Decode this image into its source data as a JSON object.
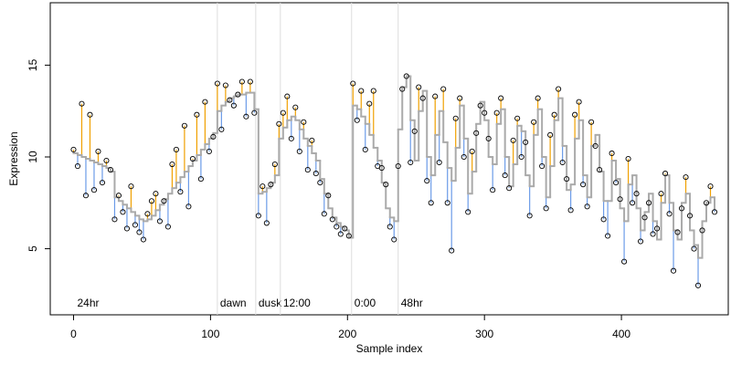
{
  "chart_data": {
    "type": "scatter",
    "xlabel": "Sample index",
    "ylabel": "Expression",
    "xlim": [
      -17,
      478
    ],
    "ylim": [
      1.4,
      18.4
    ],
    "xticks": [
      0,
      100,
      200,
      300,
      400
    ],
    "yticks": [
      5,
      10,
      15
    ],
    "events": [
      {
        "x": 105,
        "label": "dawn"
      },
      {
        "x": 133,
        "label": "dusk"
      },
      {
        "x": 151,
        "label": "12:00"
      },
      {
        "x": 203,
        "label": "0:00"
      },
      {
        "x": 237,
        "label": "48hr"
      }
    ],
    "start_label": "24hr",
    "colors": {
      "above": "#f0a000",
      "below": "#6b9be8",
      "fit": "#aaaaaa",
      "point": "#000000",
      "event": "#dddddd"
    },
    "x": [
      0,
      3,
      6,
      9,
      12,
      15,
      18,
      21,
      24,
      27,
      30,
      33,
      36,
      39,
      42,
      45,
      48,
      51,
      54,
      57,
      60,
      63,
      66,
      69,
      72,
      75,
      78,
      81,
      84,
      87,
      90,
      93,
      96,
      99,
      102,
      105,
      108,
      111,
      114,
      117,
      120,
      123,
      126,
      129,
      132,
      135,
      138,
      141,
      144,
      147,
      150,
      153,
      156,
      159,
      162,
      165,
      168,
      171,
      174,
      177,
      180,
      183,
      186,
      189,
      192,
      195,
      198,
      201,
      204,
      207,
      210,
      213,
      216,
      219,
      222,
      225,
      228,
      231,
      234,
      237,
      240,
      243,
      246,
      249,
      252,
      255,
      258,
      261,
      264,
      267,
      270,
      273,
      276,
      279,
      282,
      285,
      288,
      291,
      294,
      297,
      300,
      303,
      306,
      309,
      312,
      315,
      318,
      321,
      324,
      327,
      330,
      333,
      336,
      339,
      342,
      345,
      348,
      351,
      354,
      357,
      360,
      363,
      366,
      369,
      372,
      375,
      378,
      381,
      384,
      387,
      390,
      393,
      396,
      399,
      402,
      405,
      408,
      411,
      414,
      417,
      420,
      423,
      426,
      429,
      432,
      435,
      438,
      441,
      444,
      447,
      450,
      453,
      456,
      459,
      462,
      465,
      468
    ],
    "y": [
      10.4,
      9.5,
      12.9,
      7.9,
      12.3,
      8.2,
      10.3,
      8.6,
      9.8,
      9.3,
      6.6,
      7.9,
      7.0,
      6.1,
      8.4,
      6.3,
      5.9,
      5.5,
      6.9,
      7.6,
      8.0,
      6.5,
      7.6,
      6.2,
      9.6,
      10.4,
      8.1,
      11.7,
      7.3,
      9.9,
      12.3,
      8.8,
      13.0,
      10.3,
      11.1,
      14.0,
      11.5,
      13.9,
      13.1,
      12.8,
      13.4,
      14.1,
      12.2,
      14.1,
      12.4,
      6.8,
      8.4,
      6.4,
      8.5,
      9.6,
      11.8,
      12.4,
      13.3,
      11.0,
      12.7,
      10.3,
      11.9,
      9.3,
      10.9,
      9.1,
      8.6,
      6.9,
      7.9,
      6.6,
      6.2,
      5.8,
      6.1,
      5.7,
      14.0,
      12.0,
      13.6,
      10.4,
      12.9,
      13.6,
      9.5,
      9.4,
      8.5,
      6.2,
      5.5,
      9.5,
      13.7,
      14.4,
      9.7,
      11.4,
      13.8,
      13.2,
      8.7,
      7.5,
      13.3,
      9.7,
      13.7,
      7.5,
      4.9,
      12.1,
      13.2,
      10.0,
      7.0,
      10.3,
      11.3,
      12.8,
      12.4,
      11.0,
      8.2,
      12.4,
      13.2,
      9.0,
      8.3,
      10.9,
      12.1,
      10.0,
      10.8,
      6.8,
      11.9,
      13.2,
      9.5,
      7.2,
      11.2,
      12.3,
      13.7,
      9.7,
      8.8,
      7.1,
      12.3,
      13.0,
      8.5,
      7.3,
      11.9,
      10.6,
      9.3,
      6.6,
      5.7,
      10.2,
      8.6,
      7.7,
      4.3,
      9.9,
      7.5,
      8.0,
      5.4,
      6.7,
      7.5,
      5.8,
      6.1,
      8.0,
      9.1,
      6.9,
      3.8,
      5.9,
      7.2,
      8.9,
      6.8,
      5.0,
      3.0,
      6.0,
      7.5,
      8.4,
      7.0
    ],
    "fit": [
      10.2,
      10.1,
      10,
      9.9,
      9.8,
      9.7,
      9.6,
      9.5,
      9.4,
      9.2,
      7.8,
      7.6,
      7.4,
      7.2,
      7.0,
      6.8,
      6.6,
      6.5,
      6.6,
      6.8,
      7.1,
      7.4,
      7.7,
      8.0,
      8.3,
      8.6,
      8.9,
      9.2,
      9.5,
      9.8,
      10.1,
      10.4,
      10.7,
      11.0,
      11.3,
      12.5,
      12.8,
      13.0,
      13.2,
      13.3,
      13.4,
      13.4,
      13.5,
      13.5,
      12.6,
      8.0,
      8.1,
      8.3,
      8.6,
      9.0,
      11.0,
      11.6,
      12.0,
      12.2,
      12.0,
      11.5,
      11.0,
      10.6,
      10.2,
      9.8,
      8.8,
      8.0,
      7.2,
      6.7,
      6.4,
      6.2,
      6.0,
      5.6,
      12.8,
      12.6,
      12.2,
      11.8,
      11.2,
      10.5,
      9.8,
      8.6,
      7.2,
      6.7,
      6.5,
      11.5,
      13.8,
      14.4,
      12.0,
      9.8,
      12.5,
      13.6,
      10.0,
      9.0,
      11.2,
      12.5,
      10.8,
      9.4,
      8.7,
      10.5,
      12.8,
      11.0,
      8.0,
      9.2,
      11.8,
      13.0,
      12.0,
      10.0,
      9.6,
      11.8,
      12.6,
      10.0,
      8.4,
      9.6,
      11.7,
      11.4,
      9.0,
      8.4,
      11.2,
      12.6,
      10.0,
      7.8,
      9.5,
      12.0,
      13.2,
      10.6,
      8.2,
      8.5,
      11.0,
      12.0,
      9.0,
      7.8,
      10.6,
      11.2,
      9.2,
      7.6,
      7.6,
      9.8,
      8.8,
      7.2,
      6.5,
      8.5,
      9.0,
      7.2,
      6.0,
      7.0,
      8.0,
      6.5,
      5.5,
      7.5,
      9.0,
      7.5,
      6.0,
      5.5,
      7.5,
      8.0,
      6.0,
      5.2,
      4.5,
      6.5,
      7.5,
      7.8,
      7.2
    ]
  }
}
